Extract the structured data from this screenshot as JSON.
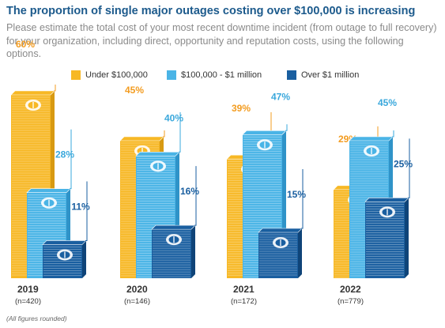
{
  "title": "The proportion of single major outages costing over $100,000 is increasing",
  "subtitle": "Please estimate the total cost of your most recent downtime incident (from outage to full recovery) for your organization, including direct, opportunity and reputation costs, using the following options.",
  "footnote": "(All figures rounded)",
  "colors": {
    "under_100k": "#f7b825",
    "mid": "#4ab4e6",
    "over_1m": "#1a5fa0",
    "title": "#1c5a8c"
  },
  "chart_data": {
    "type": "bar",
    "categories": [
      "2019",
      "2020",
      "2021",
      "2022"
    ],
    "sample_sizes": [
      "(n=420)",
      "(n=146)",
      "(n=172)",
      "(n=779)"
    ],
    "series": [
      {
        "name": "Under $100,000",
        "values": [
          60,
          45,
          39,
          29
        ],
        "labels": [
          "60%",
          "45%",
          "39%",
          "29%"
        ]
      },
      {
        "name": "$100,000 - $1 million",
        "values": [
          28,
          40,
          47,
          45
        ],
        "labels": [
          "28%",
          "40%",
          "47%",
          "45%"
        ]
      },
      {
        "name": "Over $1 million",
        "values": [
          11,
          16,
          15,
          25
        ],
        "labels": [
          "11%",
          "16%",
          "15%",
          "25%"
        ]
      }
    ],
    "ylim": [
      0,
      60
    ],
    "grid": false,
    "legend_position": "top-left"
  }
}
